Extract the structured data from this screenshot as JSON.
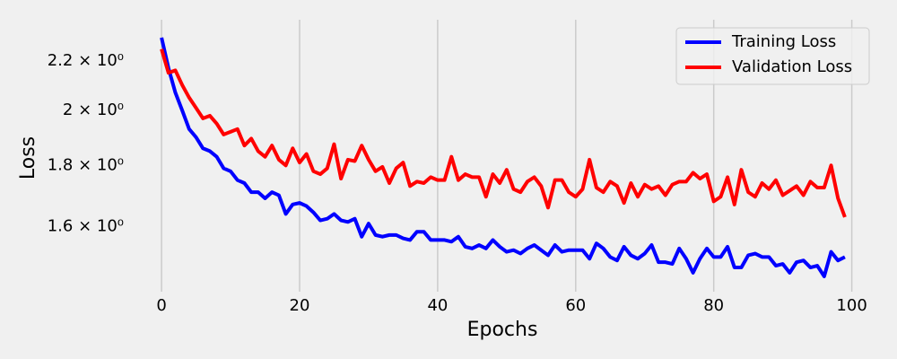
{
  "chart_data": {
    "type": "line",
    "xlabel": "Epochs",
    "ylabel": "Loss",
    "x": [
      0,
      1,
      2,
      3,
      4,
      5,
      6,
      7,
      8,
      9,
      10,
      11,
      12,
      13,
      14,
      15,
      16,
      17,
      18,
      19,
      20,
      21,
      22,
      23,
      24,
      25,
      26,
      27,
      28,
      29,
      30,
      31,
      32,
      33,
      34,
      35,
      36,
      37,
      38,
      39,
      40,
      41,
      42,
      43,
      44,
      45,
      46,
      47,
      48,
      49,
      50,
      51,
      52,
      53,
      54,
      55,
      56,
      57,
      58,
      59,
      60,
      61,
      62,
      63,
      64,
      65,
      66,
      67,
      68,
      69,
      70,
      71,
      72,
      73,
      74,
      75,
      76,
      77,
      78,
      79,
      80,
      81,
      82,
      83,
      84,
      85,
      86,
      87,
      88,
      89,
      90,
      91,
      92,
      93,
      94,
      95,
      96,
      97,
      98,
      99
    ],
    "series": [
      {
        "name": "Training Loss",
        "color": "#0000ff",
        "values": [
          2.3,
          2.17,
          2.07,
          2.0,
          1.93,
          1.9,
          1.86,
          1.85,
          1.83,
          1.79,
          1.78,
          1.75,
          1.74,
          1.71,
          1.71,
          1.69,
          1.71,
          1.7,
          1.64,
          1.67,
          1.675,
          1.665,
          1.645,
          1.62,
          1.625,
          1.64,
          1.62,
          1.615,
          1.625,
          1.57,
          1.61,
          1.575,
          1.57,
          1.575,
          1.575,
          1.565,
          1.56,
          1.585,
          1.585,
          1.56,
          1.56,
          1.56,
          1.555,
          1.57,
          1.54,
          1.535,
          1.545,
          1.535,
          1.56,
          1.54,
          1.525,
          1.53,
          1.52,
          1.535,
          1.545,
          1.53,
          1.515,
          1.545,
          1.525,
          1.53,
          1.53,
          1.53,
          1.505,
          1.55,
          1.535,
          1.51,
          1.5,
          1.54,
          1.515,
          1.505,
          1.52,
          1.545,
          1.495,
          1.495,
          1.49,
          1.535,
          1.505,
          1.465,
          1.505,
          1.535,
          1.51,
          1.51,
          1.54,
          1.48,
          1.48,
          1.515,
          1.52,
          1.51,
          1.51,
          1.485,
          1.49,
          1.465,
          1.495,
          1.5,
          1.48,
          1.485,
          1.455,
          1.525,
          1.5,
          1.51
        ]
      },
      {
        "name": "Validation Loss",
        "color": "#ff0000",
        "values": [
          2.25,
          2.15,
          2.16,
          2.1,
          2.05,
          2.01,
          1.97,
          1.98,
          1.95,
          1.91,
          1.92,
          1.93,
          1.87,
          1.895,
          1.85,
          1.83,
          1.87,
          1.82,
          1.8,
          1.86,
          1.81,
          1.84,
          1.78,
          1.77,
          1.79,
          1.875,
          1.755,
          1.82,
          1.815,
          1.87,
          1.82,
          1.78,
          1.795,
          1.74,
          1.79,
          1.81,
          1.73,
          1.745,
          1.74,
          1.76,
          1.75,
          1.75,
          1.83,
          1.75,
          1.77,
          1.76,
          1.76,
          1.695,
          1.77,
          1.74,
          1.785,
          1.72,
          1.71,
          1.745,
          1.76,
          1.73,
          1.66,
          1.75,
          1.75,
          1.71,
          1.695,
          1.72,
          1.82,
          1.725,
          1.71,
          1.745,
          1.73,
          1.675,
          1.74,
          1.695,
          1.735,
          1.72,
          1.73,
          1.7,
          1.735,
          1.745,
          1.745,
          1.775,
          1.755,
          1.77,
          1.68,
          1.695,
          1.76,
          1.67,
          1.785,
          1.71,
          1.695,
          1.74,
          1.72,
          1.75,
          1.7,
          1.715,
          1.73,
          1.7,
          1.745,
          1.725,
          1.725,
          1.8,
          1.69,
          1.63
        ]
      }
    ],
    "xlim": [
      -4.95,
      103.95
    ],
    "xticks": [
      0,
      20,
      40,
      60,
      80,
      100
    ],
    "ylim": [
      1.425,
      2.36
    ],
    "ylog": true,
    "yticks": [
      {
        "value": 1.6,
        "label": "1.6 × 10⁰"
      },
      {
        "value": 1.8,
        "label": "1.8 × 10⁰"
      },
      {
        "value": 2,
        "label": "2 × 10⁰"
      },
      {
        "value": 2.2,
        "label": "2.2 × 10⁰"
      }
    ],
    "grid": "x",
    "legend": "upper right"
  }
}
